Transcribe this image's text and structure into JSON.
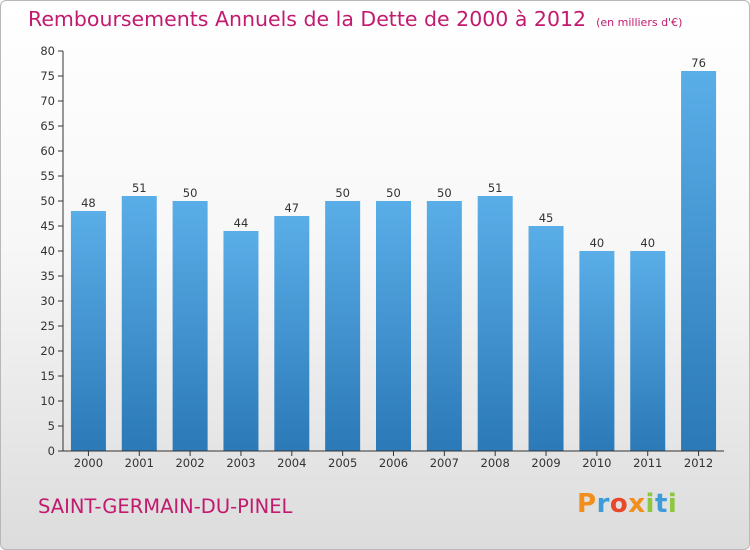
{
  "title": {
    "main": "Remboursements Annuels de la Dette de 2000 à 2012",
    "unit": "(en milliers d'€)"
  },
  "commune": "SAINT-GERMAIN-DU-PINEL",
  "logo": {
    "letters": [
      "P",
      "r",
      "o",
      "x",
      "i",
      "t",
      "i"
    ],
    "colors": [
      "#f18e1c",
      "#3d9cd8",
      "#e8472a",
      "#f18e1c",
      "#8dc63f",
      "#3d9cd8",
      "#8dc63f"
    ]
  },
  "colors": {
    "bar_light": "#5aaee8",
    "bar_dark": "#2b79b7",
    "title": "#c21a6e"
  },
  "chart_data": {
    "type": "bar",
    "title": "Remboursements Annuels de la Dette de 2000 à 2012",
    "xlabel": "",
    "ylabel": "",
    "categories": [
      "2000",
      "2001",
      "2002",
      "2003",
      "2004",
      "2005",
      "2006",
      "2007",
      "2008",
      "2009",
      "2010",
      "2011",
      "2012"
    ],
    "values": [
      48,
      51,
      50,
      44,
      47,
      50,
      50,
      50,
      51,
      45,
      40,
      40,
      76
    ],
    "ylim": [
      0,
      80
    ],
    "yticks": [
      0,
      5,
      10,
      15,
      20,
      25,
      30,
      35,
      40,
      45,
      50,
      55,
      60,
      65,
      70,
      75,
      80
    ],
    "grid": false,
    "legend": "none"
  }
}
